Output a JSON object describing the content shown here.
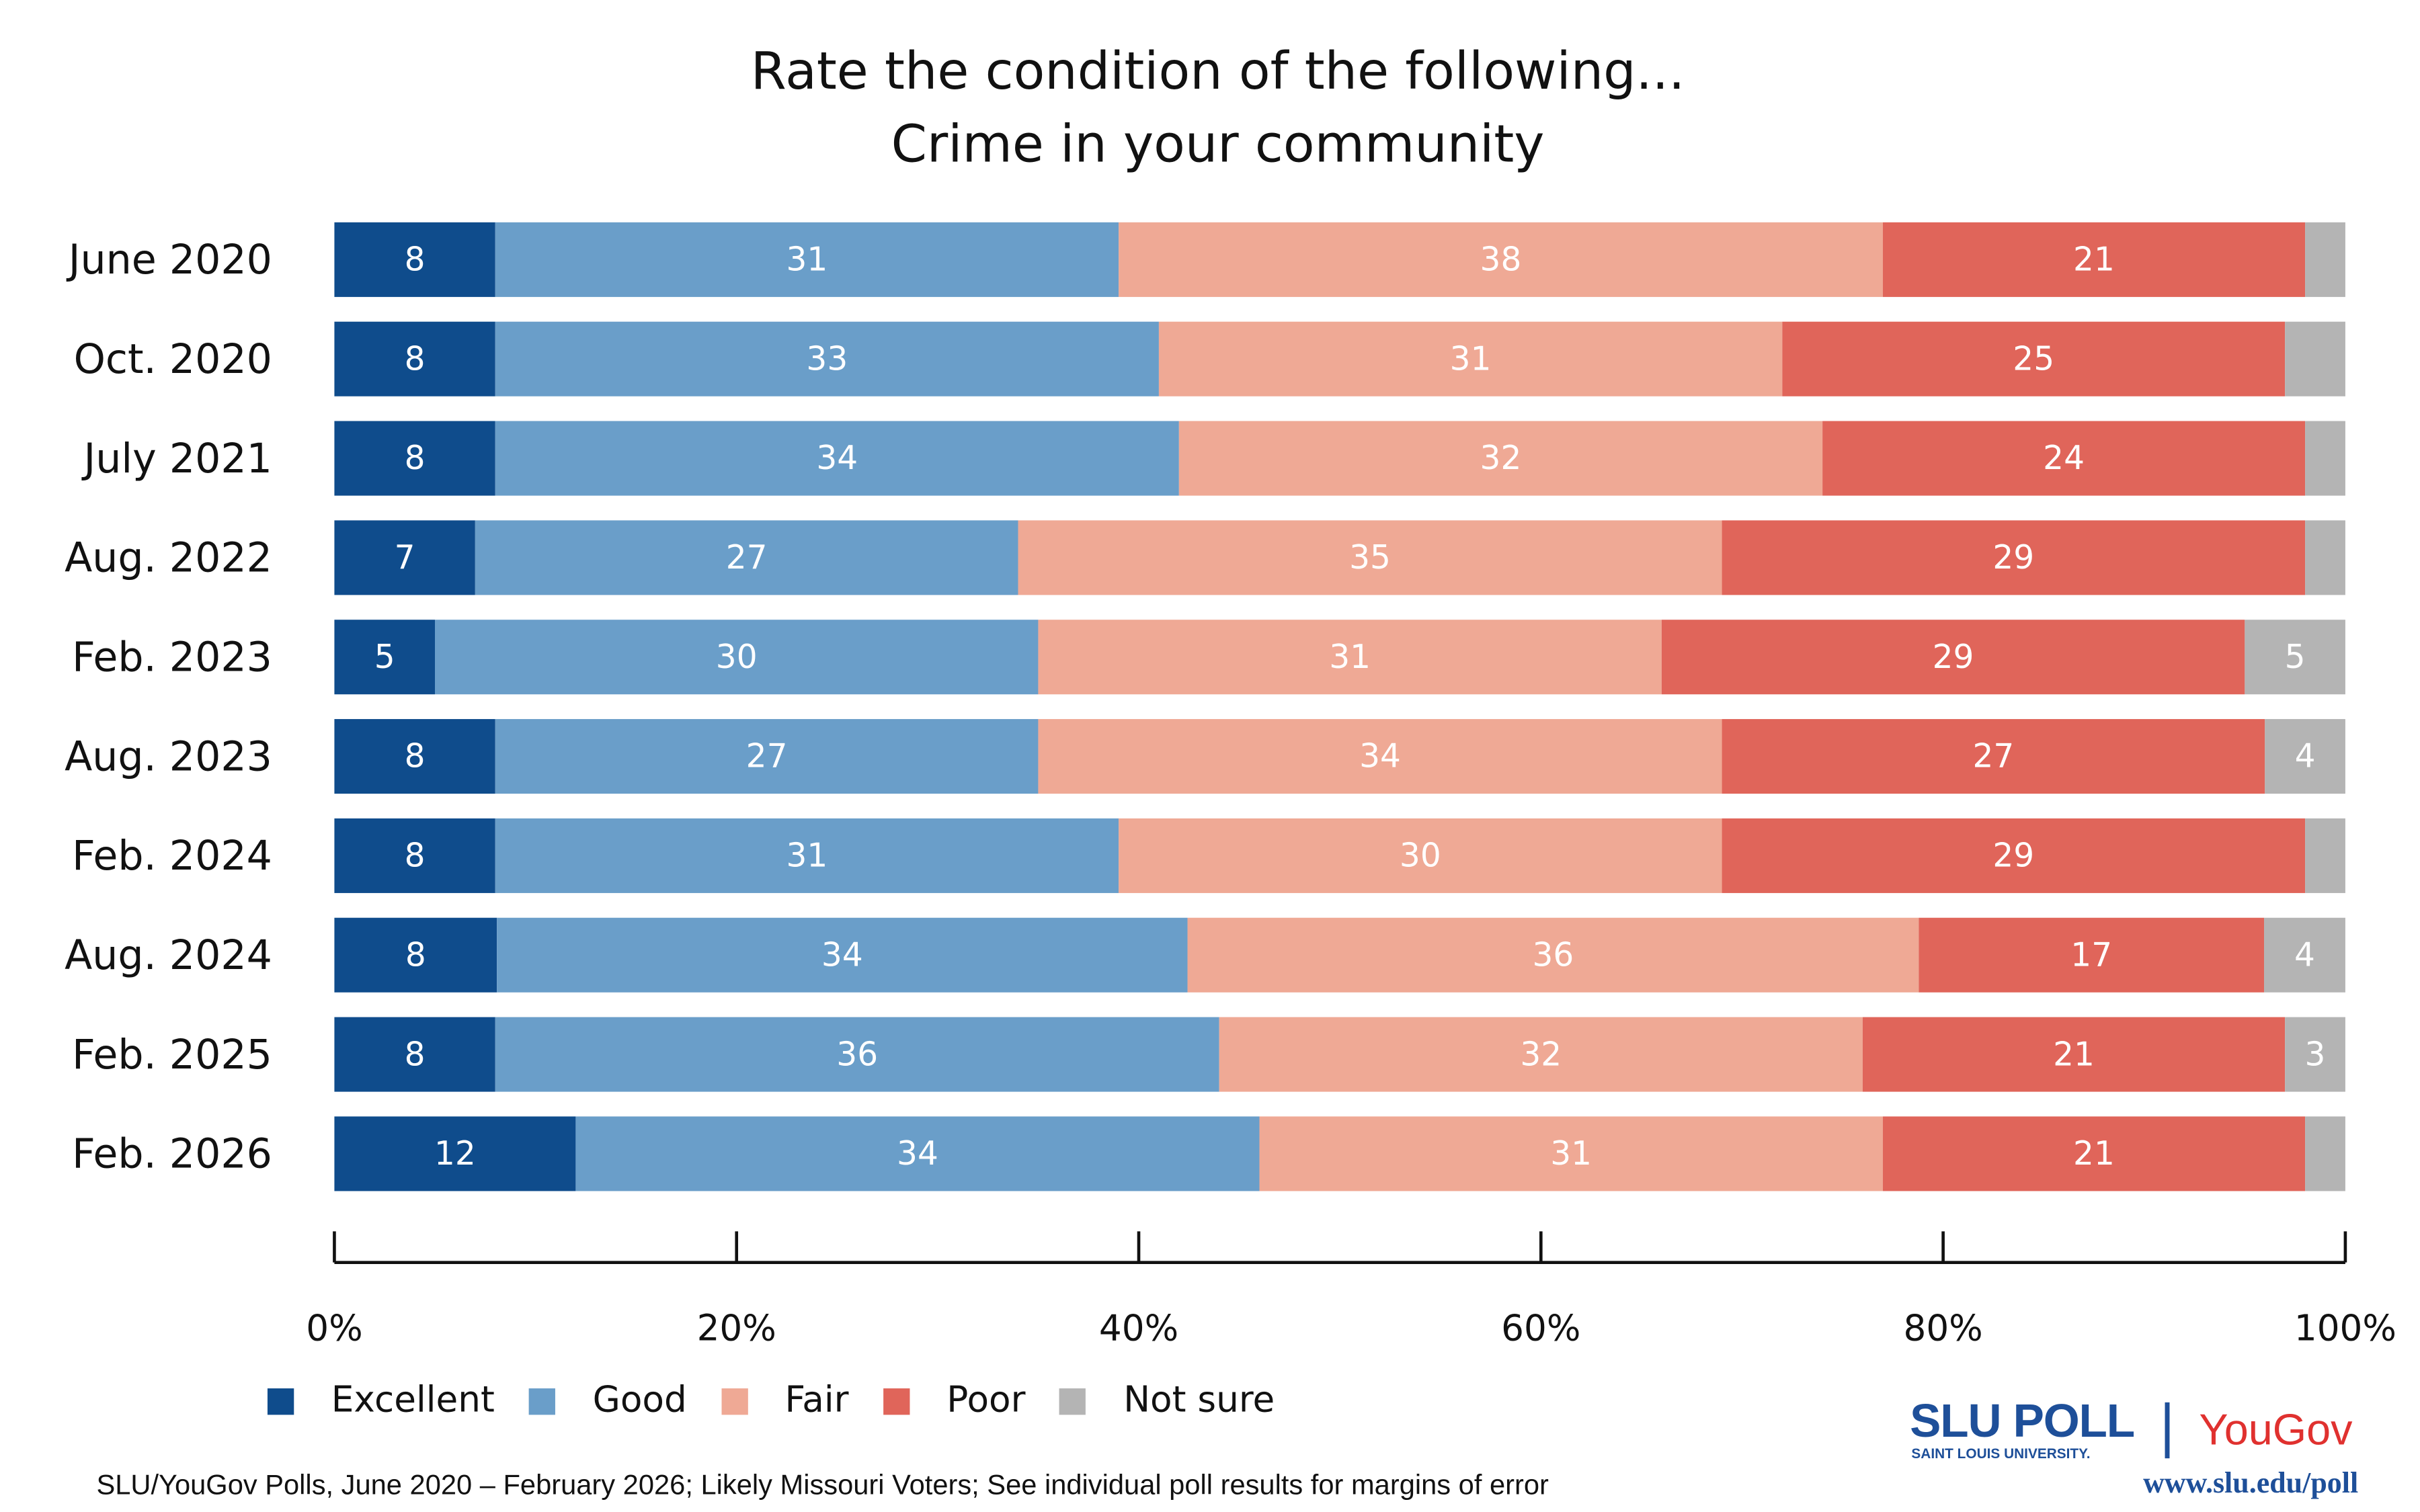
{
  "chart_data": {
    "type": "bar",
    "orientation": "horizontal-stacked-100",
    "title": "Rate the condition of the following...",
    "subtitle": "Crime in your community",
    "categories": [
      "June 2020",
      "Oct. 2020",
      "July 2021",
      "Aug. 2022",
      "Feb. 2023",
      "Aug. 2023",
      "Feb. 2024",
      "Aug. 2024",
      "Feb. 2025",
      "Feb. 2026"
    ],
    "series": [
      {
        "name": "Excellent",
        "color": "#0f4c8c",
        "values": [
          8,
          8,
          8,
          7,
          5,
          8,
          8,
          8,
          8,
          12
        ],
        "labels": [
          "8",
          "8",
          "8",
          "7",
          "5",
          "8",
          "8",
          "8",
          "8",
          "12"
        ]
      },
      {
        "name": "Good",
        "color": "#6a9ec9",
        "values": [
          31,
          33,
          34,
          27,
          30,
          27,
          31,
          34,
          36,
          34
        ],
        "labels": [
          "31",
          "33",
          "34",
          "27",
          "30",
          "27",
          "31",
          "34",
          "36",
          "34"
        ]
      },
      {
        "name": "Fair",
        "color": "#efa995",
        "values": [
          38,
          31,
          32,
          35,
          31,
          34,
          30,
          36,
          32,
          31
        ],
        "labels": [
          "38",
          "31",
          "32",
          "35",
          "31",
          "34",
          "30",
          "36",
          "32",
          "31"
        ]
      },
      {
        "name": "Poor",
        "color": "#e0655a",
        "values": [
          21,
          25,
          24,
          29,
          29,
          27,
          29,
          17,
          21,
          21
        ],
        "labels": [
          "21",
          "25",
          "24",
          "29",
          "29",
          "27",
          "29",
          "17",
          "21",
          "21"
        ]
      },
      {
        "name": "Not sure",
        "color": "#b4b4b4",
        "values": [
          2,
          3,
          2,
          2,
          5,
          4,
          2,
          4,
          3,
          2
        ],
        "labels": [
          "",
          "",
          "",
          "",
          "5",
          "4",
          "",
          "4",
          "3",
          ""
        ]
      }
    ],
    "xlim": [
      0,
      100
    ],
    "xticks": [
      "0%",
      "20%",
      "40%",
      "60%",
      "80%",
      "100%"
    ],
    "grid": false,
    "legend": "bottom-left"
  },
  "footer": "SLU/YouGov Polls, June 2020 – February 2026; Likely Missouri Voters; See individual poll results for margins of error",
  "logo": {
    "slu": "SLU POLL",
    "university": "SAINT LOUIS UNIVERSITY.",
    "yougov": "YouGov",
    "url": "www.slu.edu/poll"
  }
}
